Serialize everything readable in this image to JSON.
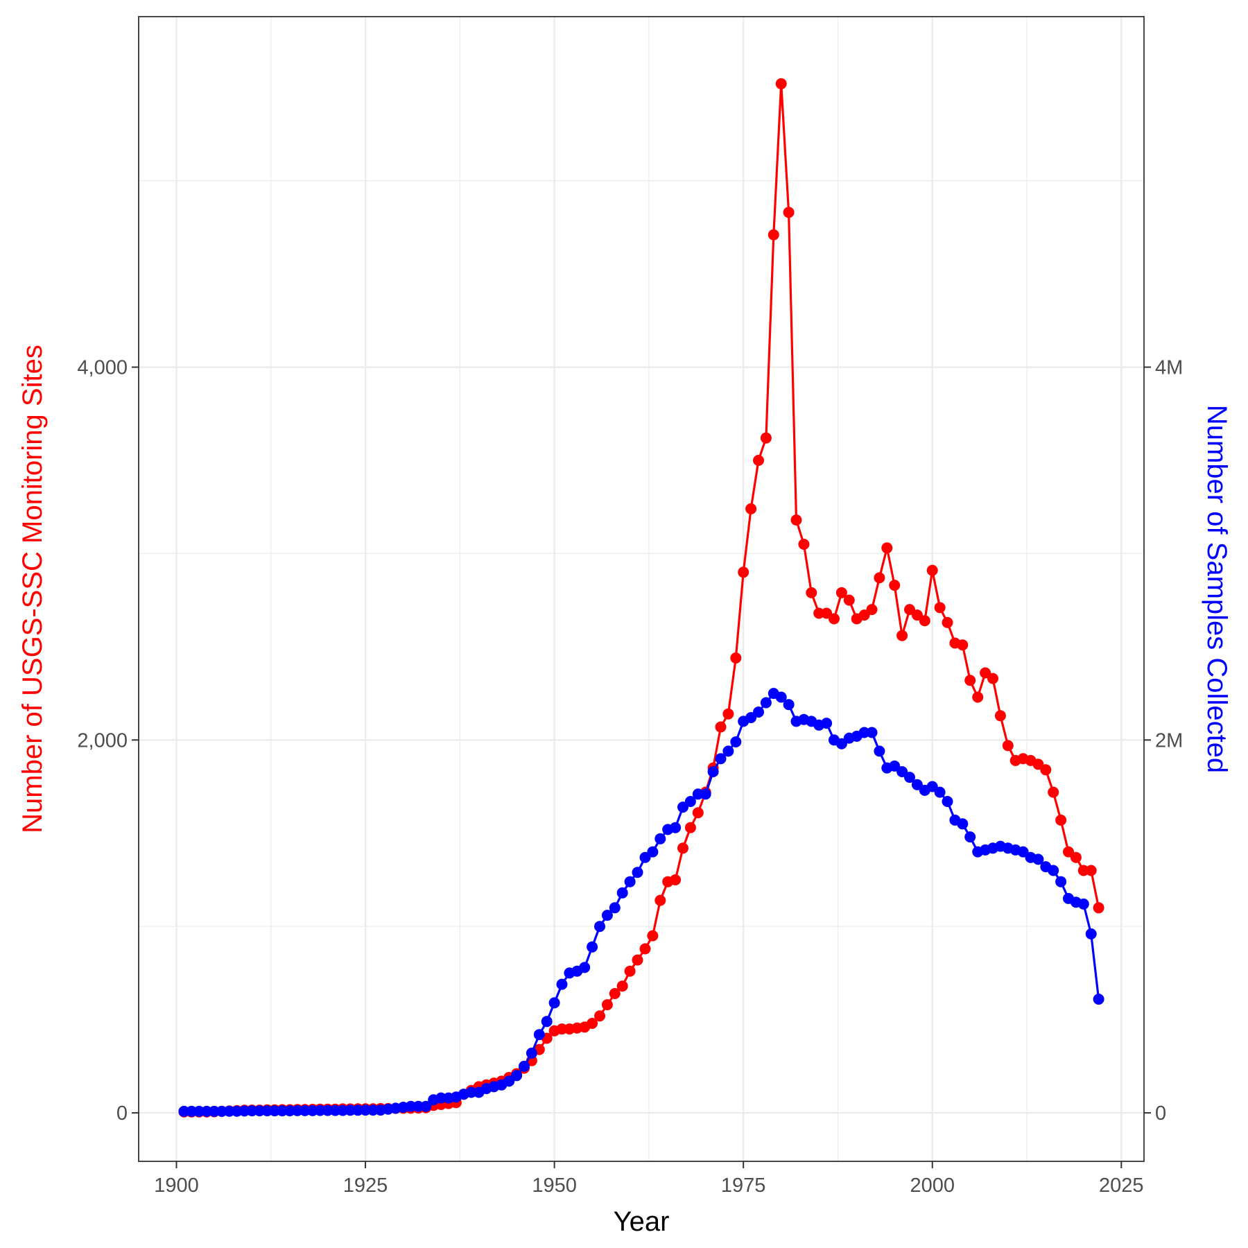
{
  "chart_data": {
    "type": "line",
    "title": "",
    "xlabel": "Year",
    "ylabel": "Number of USGS-SSC Monitoring Sites",
    "y2label": "Number of Samples Collected",
    "xlim": [
      1895,
      2028
    ],
    "ylim": [
      -260,
      5880
    ],
    "y2lim": [
      -260000,
      5880000
    ],
    "x_ticks": [
      1900,
      1925,
      1950,
      1975,
      2000,
      2025
    ],
    "y_ticks": [
      0,
      2000,
      4000
    ],
    "y_tick_labels": [
      "0",
      "2,000",
      "4,000"
    ],
    "y2_ticks": [
      0,
      2000000,
      4000000
    ],
    "y2_tick_labels": [
      "0",
      "2M",
      "4M"
    ],
    "grid": true,
    "colors": {
      "sites": "#ff0000",
      "samples": "#0000ff"
    },
    "series": [
      {
        "axis": "left",
        "color": "#ff0000",
        "x": [
          1901,
          1902,
          1903,
          1904,
          1905,
          1906,
          1907,
          1908,
          1909,
          1910,
          1911,
          1912,
          1913,
          1914,
          1915,
          1916,
          1917,
          1918,
          1919,
          1920,
          1921,
          1922,
          1923,
          1924,
          1925,
          1926,
          1927,
          1928,
          1929,
          1930,
          1931,
          1932,
          1933,
          1934,
          1935,
          1936,
          1937,
          1938,
          1939,
          1940,
          1941,
          1942,
          1943,
          1944,
          1945,
          1946,
          1947,
          1948,
          1949,
          1950,
          1951,
          1952,
          1953,
          1954,
          1955,
          1956,
          1957,
          1958,
          1959,
          1960,
          1961,
          1962,
          1963,
          1964,
          1965,
          1966,
          1967,
          1968,
          1969,
          1970,
          1971,
          1972,
          1973,
          1974,
          1975,
          1976,
          1977,
          1978,
          1979,
          1980,
          1981,
          1982,
          1983,
          1984,
          1985,
          1986,
          1987,
          1988,
          1989,
          1990,
          1991,
          1992,
          1993,
          1994,
          1995,
          1996,
          1997,
          1998,
          1999,
          2000,
          2001,
          2002,
          2003,
          2004,
          2005,
          2006,
          2007,
          2008,
          2009,
          2010,
          2011,
          2012,
          2013,
          2014,
          2015,
          2016,
          2017,
          2018,
          2019,
          2020,
          2021,
          2022
        ],
        "values": [
          5,
          5,
          5,
          5,
          6,
          8,
          10,
          12,
          14,
          15,
          15,
          16,
          16,
          17,
          17,
          18,
          18,
          19,
          20,
          20,
          20,
          21,
          21,
          22,
          22,
          22,
          23,
          23,
          24,
          25,
          25,
          26,
          28,
          40,
          45,
          50,
          55,
          100,
          120,
          140,
          150,
          160,
          170,
          190,
          210,
          240,
          280,
          340,
          400,
          440,
          450,
          450,
          455,
          460,
          480,
          520,
          580,
          640,
          680,
          760,
          820,
          880,
          950,
          1140,
          1240,
          1250,
          1420,
          1530,
          1610,
          1720,
          1850,
          2070,
          2140,
          2440,
          2900,
          3240,
          3500,
          3620,
          4710,
          5520,
          4830,
          3180,
          3050,
          2790,
          2680,
          2680,
          2650,
          2790,
          2750,
          2650,
          2670,
          2700,
          2870,
          3030,
          2830,
          2560,
          2700,
          2670,
          2640,
          2910,
          2710,
          2630,
          2520,
          2510,
          2320,
          2230,
          2360,
          2330,
          2130,
          1970,
          1890,
          1900,
          1890,
          1870,
          1840,
          1720,
          1570,
          1400,
          1370,
          1300,
          1300,
          1100
        ]
      },
      {
        "axis": "right",
        "color": "#0000ff",
        "x": [
          1901,
          1902,
          1903,
          1904,
          1905,
          1906,
          1907,
          1908,
          1909,
          1910,
          1911,
          1912,
          1913,
          1914,
          1915,
          1916,
          1917,
          1918,
          1919,
          1920,
          1921,
          1922,
          1923,
          1924,
          1925,
          1926,
          1927,
          1928,
          1929,
          1930,
          1931,
          1932,
          1933,
          1934,
          1935,
          1936,
          1937,
          1938,
          1939,
          1940,
          1941,
          1942,
          1943,
          1944,
          1945,
          1946,
          1947,
          1948,
          1949,
          1950,
          1951,
          1952,
          1953,
          1954,
          1955,
          1956,
          1957,
          1958,
          1959,
          1960,
          1961,
          1962,
          1963,
          1964,
          1965,
          1966,
          1967,
          1968,
          1969,
          1970,
          1971,
          1972,
          1973,
          1974,
          1975,
          1976,
          1977,
          1978,
          1979,
          1980,
          1981,
          1982,
          1983,
          1984,
          1985,
          1986,
          1987,
          1988,
          1989,
          1990,
          1991,
          1992,
          1993,
          1994,
          1995,
          1996,
          1997,
          1998,
          1999,
          2000,
          2001,
          2002,
          2003,
          2004,
          2005,
          2006,
          2007,
          2008,
          2009,
          2010,
          2011,
          2012,
          2013,
          2014,
          2015,
          2016,
          2017,
          2018,
          2019,
          2020,
          2021,
          2022
        ],
        "values": [
          8000,
          8000,
          8000,
          8000,
          8000,
          8000,
          9000,
          9000,
          10000,
          11000,
          11000,
          11000,
          11000,
          11000,
          11000,
          12000,
          12000,
          12000,
          13000,
          13000,
          13000,
          13000,
          14000,
          14000,
          15000,
          15000,
          15000,
          20000,
          25000,
          30000,
          35000,
          35000,
          35000,
          70000,
          80000,
          80000,
          85000,
          100000,
          110000,
          110000,
          130000,
          140000,
          150000,
          170000,
          200000,
          250000,
          320000,
          420000,
          490000,
          590000,
          690000,
          750000,
          760000,
          780000,
          890000,
          1000000,
          1060000,
          1100000,
          1180000,
          1240000,
          1290000,
          1370000,
          1400000,
          1470000,
          1520000,
          1530000,
          1640000,
          1670000,
          1710000,
          1710000,
          1830000,
          1900000,
          1940000,
          1990000,
          2100000,
          2120000,
          2150000,
          2200000,
          2250000,
          2230000,
          2190000,
          2100000,
          2110000,
          2100000,
          2080000,
          2090000,
          2000000,
          1980000,
          2010000,
          2020000,
          2040000,
          2040000,
          1940000,
          1850000,
          1860000,
          1830000,
          1800000,
          1760000,
          1730000,
          1750000,
          1720000,
          1670000,
          1570000,
          1550000,
          1480000,
          1400000,
          1410000,
          1420000,
          1430000,
          1420000,
          1410000,
          1400000,
          1370000,
          1360000,
          1320000,
          1300000,
          1240000,
          1150000,
          1130000,
          1120000,
          960000,
          610000
        ]
      }
    ]
  }
}
